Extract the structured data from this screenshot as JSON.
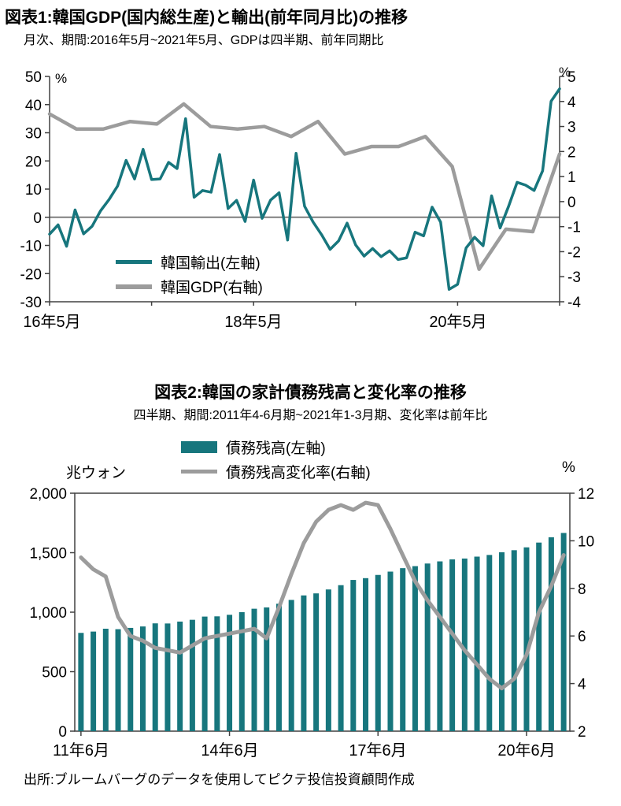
{
  "colors": {
    "teal": "#17767D",
    "gray": "#9C9C9C",
    "axis": "#404040",
    "zero_line": "#7F7F7F"
  },
  "footer": {
    "source": "出所:ブルームバーグのデータを使用してピクテ投信投資顧問作成"
  },
  "chart_data": [
    {
      "type": "line",
      "title": "図表1:韓国GDP(国内総生産)と輸出(前年同月比)の推移",
      "subtitle": "月次、期間:2016年5月~2021年5月、GDPは四半期、前年同期比",
      "left_axis": {
        "unit": "%",
        "lim": [
          -30,
          50
        ],
        "ticks": [
          50,
          40,
          30,
          20,
          10,
          0,
          -10,
          -20,
          -30
        ]
      },
      "right_axis": {
        "unit": "%",
        "lim": [
          -4,
          5
        ],
        "ticks": [
          5,
          4,
          3,
          2,
          1,
          0,
          -1,
          -2,
          -3,
          -4
        ]
      },
      "x_axis": {
        "labels": [
          "16年5月",
          "18年5月",
          "20年5月"
        ],
        "label_indices": [
          0,
          24,
          48
        ],
        "tick_indices": [
          0,
          12,
          24,
          36,
          48,
          60
        ]
      },
      "legend_position": "inside-lower-left",
      "grid": "zero-line-only",
      "series": [
        {
          "name": "韓国輸出(左軸)",
          "axis": "left",
          "freq": "monthly",
          "start": "2016-05",
          "values": [
            -6.0,
            -2.7,
            -10.3,
            2.6,
            -5.9,
            -3.2,
            2.3,
            6.3,
            11.1,
            20.2,
            13.6,
            24.1,
            13.4,
            13.6,
            19.5,
            17.3,
            35.0,
            7.1,
            9.5,
            8.9,
            22.3,
            3.1,
            6.0,
            -1.5,
            13.2,
            -0.4,
            6.1,
            8.7,
            -8.1,
            22.7,
            3.9,
            -1.7,
            -6.2,
            -11.4,
            -8.4,
            -2.1,
            -9.8,
            -13.8,
            -11.1,
            -14.0,
            -11.9,
            -15.0,
            -14.4,
            -5.3,
            -6.6,
            3.6,
            -1.7,
            -25.6,
            -23.8,
            -10.9,
            -7.1,
            -10.1,
            7.6,
            -3.8,
            3.9,
            12.4,
            11.4,
            9.5,
            16.5,
            41.2,
            45.6
          ]
        },
        {
          "name": "韓国GDP(右軸)",
          "axis": "right",
          "freq": "quarterly",
          "start": "2016-Q2",
          "values": [
            3.5,
            2.9,
            2.9,
            3.2,
            3.1,
            3.9,
            3.0,
            2.9,
            3.0,
            2.6,
            3.2,
            1.9,
            2.2,
            2.2,
            2.6,
            1.4,
            -2.7,
            -1.1,
            -1.2,
            1.9
          ]
        }
      ]
    },
    {
      "type": "bar",
      "title": "図表2:韓国の家計債務残高と変化率の推移",
      "subtitle": "四半期、期間:2011年4-6月期~2021年1-3月期、変化率は前年比",
      "left_axis": {
        "unit": "兆ウォン",
        "lim": [
          0,
          2000
        ],
        "ticks": [
          2000,
          1500,
          1000,
          500,
          0
        ]
      },
      "right_axis": {
        "unit": "%",
        "lim": [
          2,
          12
        ],
        "ticks": [
          12,
          10,
          8,
          6,
          4,
          2
        ]
      },
      "x_axis": {
        "labels": [
          "11年6月",
          "14年6月",
          "17年6月",
          "20年6月"
        ],
        "label_indices": [
          0,
          12,
          24,
          36
        ]
      },
      "legend_position": "top-center",
      "grid": "frame-only",
      "series": [
        {
          "name": "債務残高(左軸)",
          "type": "bar",
          "axis": "left",
          "freq": "quarterly",
          "start": "2011-Q2",
          "values": [
            826,
            837,
            861,
            857,
            868,
            880,
            906,
            905,
            921,
            936,
            963,
            965,
            978,
            1000,
            1029,
            1040,
            1071,
            1103,
            1141,
            1158,
            1191,
            1227,
            1271,
            1286,
            1313,
            1341,
            1370,
            1387,
            1409,
            1427,
            1444,
            1451,
            1467,
            1481,
            1504,
            1521,
            1545,
            1585,
            1630,
            1666
          ]
        },
        {
          "name": "債務残高変化率(右軸)",
          "type": "line",
          "axis": "right",
          "freq": "quarterly",
          "start": "2011-Q2",
          "values": [
            9.3,
            8.8,
            8.5,
            6.8,
            6.0,
            5.8,
            5.5,
            5.4,
            5.3,
            5.6,
            5.9,
            6.0,
            6.1,
            6.2,
            6.3,
            5.9,
            7.2,
            8.6,
            9.9,
            10.8,
            11.3,
            11.5,
            11.3,
            11.6,
            11.5,
            10.5,
            9.4,
            8.3,
            7.5,
            6.8,
            6.1,
            5.4,
            4.8,
            4.2,
            3.8,
            4.2,
            5.2,
            7.0,
            8.1,
            9.4
          ]
        }
      ]
    }
  ]
}
